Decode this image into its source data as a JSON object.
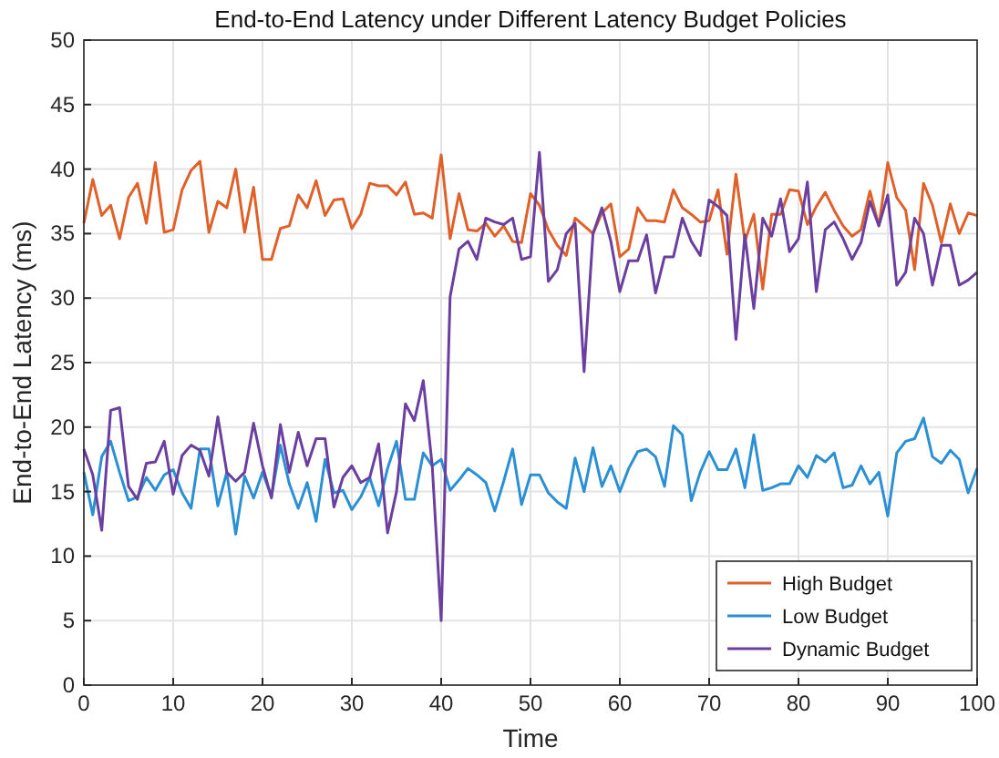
{
  "chart_data": {
    "type": "line",
    "title": "End-to-End Latency under Different Latency Budget Policies",
    "xlabel": "Time",
    "ylabel": "End-to-End Latency (ms)",
    "x": [
      0,
      1,
      2,
      3,
      4,
      5,
      6,
      7,
      8,
      9,
      10,
      11,
      12,
      13,
      14,
      15,
      16,
      17,
      18,
      19,
      20,
      21,
      22,
      23,
      24,
      25,
      26,
      27,
      28,
      29,
      30,
      31,
      32,
      33,
      34,
      35,
      36,
      37,
      38,
      39,
      40,
      41,
      42,
      43,
      44,
      45,
      46,
      47,
      48,
      49,
      50,
      51,
      52,
      53,
      54,
      55,
      56,
      57,
      58,
      59,
      60,
      61,
      62,
      63,
      64,
      65,
      66,
      67,
      68,
      69,
      70,
      71,
      72,
      73,
      74,
      75,
      76,
      77,
      78,
      79,
      80,
      81,
      82,
      83,
      84,
      85,
      86,
      87,
      88,
      89,
      90,
      91,
      92,
      93,
      94,
      95,
      96,
      97,
      98,
      99,
      100
    ],
    "series": [
      {
        "name": "High Budget",
        "color": "#e0602a",
        "values": [
          35.8,
          39.2,
          36.4,
          37.2,
          34.6,
          37.8,
          38.9,
          35.8,
          40.5,
          35.1,
          35.3,
          38.4,
          39.9,
          40.6,
          35.1,
          37.5,
          37.0,
          40.0,
          35.1,
          38.6,
          33.0,
          33.0,
          35.4,
          35.6,
          38.0,
          37.0,
          39.1,
          36.4,
          37.6,
          37.7,
          35.4,
          36.5,
          38.9,
          38.7,
          38.7,
          38.0,
          39.0,
          36.5,
          36.6,
          36.2,
          41.1,
          34.6,
          38.1,
          35.3,
          35.2,
          35.8,
          34.8,
          35.6,
          34.4,
          34.3,
          38.1,
          37.2,
          35.3,
          34.1,
          33.3,
          36.2,
          35.6,
          35.0,
          36.6,
          37.3,
          33.2,
          33.8,
          37.0,
          36.0,
          36.0,
          35.9,
          38.4,
          37.0,
          36.5,
          35.9,
          36.0,
          38.4,
          33.4,
          39.6,
          34.4,
          36.5,
          30.7,
          36.5,
          36.5,
          38.4,
          38.3,
          35.7,
          37.1,
          38.2,
          36.8,
          35.6,
          34.8,
          35.3,
          38.3,
          35.6,
          40.5,
          37.8,
          36.8,
          32.2,
          38.9,
          37.2,
          34.3,
          37.3,
          35.0,
          36.6,
          36.4
        ]
      },
      {
        "name": "Low Budget",
        "color": "#2b8fd4",
        "values": [
          16.5,
          13.2,
          17.7,
          18.9,
          16.5,
          14.3,
          14.6,
          16.1,
          15.1,
          16.3,
          16.7,
          14.9,
          13.7,
          18.3,
          18.3,
          13.9,
          16.5,
          11.7,
          16.2,
          14.5,
          16.5,
          14.6,
          18.6,
          15.6,
          13.7,
          15.7,
          12.7,
          17.5,
          14.9,
          15.1,
          13.6,
          14.6,
          16.1,
          13.9,
          16.8,
          18.9,
          14.4,
          14.4,
          18.0,
          17.0,
          17.5,
          15.1,
          15.9,
          16.8,
          16.3,
          15.7,
          13.5,
          15.8,
          18.3,
          14.0,
          16.3,
          16.3,
          14.9,
          14.2,
          13.7,
          17.6,
          15.0,
          18.4,
          15.4,
          17.0,
          15.0,
          16.8,
          18.1,
          18.3,
          17.7,
          15.4,
          20.1,
          19.4,
          14.3,
          16.5,
          18.1,
          16.7,
          16.7,
          18.3,
          15.3,
          19.4,
          15.1,
          15.3,
          15.6,
          15.6,
          17.0,
          16.1,
          17.8,
          17.3,
          18.0,
          15.3,
          15.5,
          17.0,
          15.6,
          16.5,
          13.1,
          18.0,
          18.9,
          19.1,
          20.7,
          17.7,
          17.2,
          18.2,
          17.5,
          14.9,
          16.8
        ]
      },
      {
        "name": "Dynamic Budget",
        "color": "#6a3fa0",
        "values": [
          18.3,
          16.3,
          12.0,
          21.3,
          21.5,
          15.4,
          14.4,
          17.2,
          17.3,
          18.9,
          14.8,
          17.8,
          18.6,
          18.2,
          16.2,
          20.8,
          16.5,
          15.8,
          16.5,
          20.3,
          17.0,
          14.5,
          20.2,
          16.5,
          19.6,
          17.0,
          19.1,
          19.1,
          13.8,
          16.1,
          17.0,
          15.7,
          16.1,
          18.7,
          11.8,
          15.0,
          21.8,
          20.5,
          23.6,
          17.0,
          5.0,
          30.1,
          33.8,
          34.4,
          33.0,
          36.2,
          35.9,
          35.7,
          36.2,
          33.0,
          33.2,
          41.3,
          31.3,
          32.2,
          35.0,
          35.8,
          24.3,
          35.0,
          37.0,
          34.4,
          30.5,
          32.9,
          32.9,
          34.9,
          30.4,
          33.2,
          33.2,
          36.2,
          34.4,
          33.3,
          37.6,
          37.1,
          36.4,
          26.8,
          34.9,
          29.2,
          36.2,
          34.8,
          37.7,
          33.6,
          34.6,
          39.0,
          30.5,
          35.3,
          35.9,
          34.6,
          33.0,
          34.3,
          37.5,
          35.6,
          38.0,
          31.0,
          32.0,
          36.2,
          35.0,
          31.0,
          34.1,
          34.1,
          31.0,
          31.4,
          32.0
        ]
      }
    ],
    "xlim": [
      0,
      100
    ],
    "xticks": [
      0,
      10,
      20,
      30,
      40,
      50,
      60,
      70,
      80,
      90,
      100
    ],
    "ylim": [
      0,
      50
    ],
    "yticks": [
      0,
      5,
      10,
      15,
      20,
      25,
      30,
      35,
      40,
      45,
      50
    ],
    "grid": true,
    "legend": "bottom right",
    "marker": "none",
    "line_style": "solid"
  }
}
